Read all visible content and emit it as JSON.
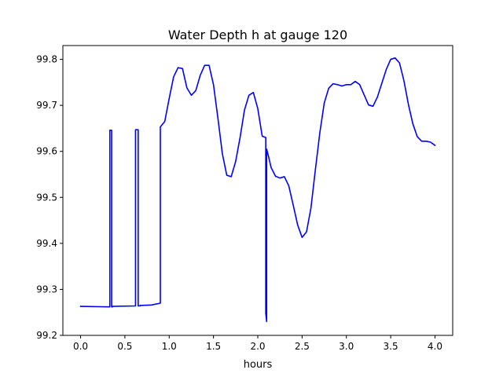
{
  "chart_data": {
    "type": "line",
    "title": "Water Depth h at gauge 120",
    "xlabel": "hours",
    "ylabel": "",
    "xlim": [
      -0.2,
      4.2
    ],
    "ylim": [
      99.2,
      99.83
    ],
    "x_ticks": [
      0.0,
      0.5,
      1.0,
      1.5,
      2.0,
      2.5,
      3.0,
      3.5,
      4.0
    ],
    "x_tick_labels": [
      "0.0",
      "0.5",
      "1.0",
      "1.5",
      "2.0",
      "2.5",
      "3.0",
      "3.5",
      "4.0"
    ],
    "y_ticks": [
      99.2,
      99.3,
      99.4,
      99.5,
      99.6,
      99.7,
      99.8
    ],
    "y_tick_labels": [
      "99.2",
      "99.3",
      "99.4",
      "99.5",
      "99.6",
      "99.7",
      "99.8"
    ],
    "grid": false,
    "series": [
      {
        "color": "#0000ff",
        "x": [
          0.0,
          0.33,
          0.33,
          0.35,
          0.35,
          0.36,
          0.36,
          0.62,
          0.62,
          0.65,
          0.65,
          0.67,
          0.67,
          0.8,
          0.9,
          0.9,
          0.95,
          1.0,
          1.05,
          1.1,
          1.15,
          1.2,
          1.25,
          1.3,
          1.35,
          1.4,
          1.45,
          1.5,
          1.55,
          1.6,
          1.65,
          1.7,
          1.75,
          1.8,
          1.85,
          1.9,
          1.95,
          2.0,
          2.05,
          2.09,
          2.09,
          2.1,
          2.1,
          2.12,
          2.15,
          2.2,
          2.25,
          2.3,
          2.35,
          2.4,
          2.45,
          2.5,
          2.55,
          2.6,
          2.65,
          2.7,
          2.75,
          2.8,
          2.85,
          2.9,
          2.95,
          3.0,
          3.05,
          3.1,
          3.15,
          3.2,
          3.25,
          3.3,
          3.35,
          3.4,
          3.45,
          3.5,
          3.55,
          3.6,
          3.65,
          3.7,
          3.75,
          3.8,
          3.85,
          3.9,
          3.95,
          4.0
        ],
        "y": [
          99.263,
          99.262,
          99.646,
          99.646,
          99.262,
          99.262,
          99.263,
          99.264,
          99.647,
          99.647,
          99.264,
          99.264,
          99.265,
          99.266,
          99.27,
          99.653,
          99.665,
          99.715,
          99.762,
          99.782,
          99.78,
          99.738,
          99.722,
          99.732,
          99.765,
          99.787,
          99.787,
          99.745,
          99.672,
          99.595,
          99.548,
          99.545,
          99.578,
          99.63,
          99.69,
          99.722,
          99.728,
          99.693,
          99.633,
          99.63,
          99.248,
          99.23,
          99.605,
          99.59,
          99.565,
          99.546,
          99.542,
          99.545,
          99.525,
          99.483,
          99.44,
          99.413,
          99.425,
          99.477,
          99.56,
          99.64,
          99.705,
          99.737,
          99.747,
          99.745,
          99.742,
          99.745,
          99.745,
          99.752,
          99.745,
          99.723,
          99.701,
          99.698,
          99.718,
          99.748,
          99.778,
          99.8,
          99.803,
          99.792,
          99.753,
          99.702,
          99.66,
          99.632,
          99.622,
          99.622,
          99.62,
          99.613
        ]
      }
    ]
  }
}
